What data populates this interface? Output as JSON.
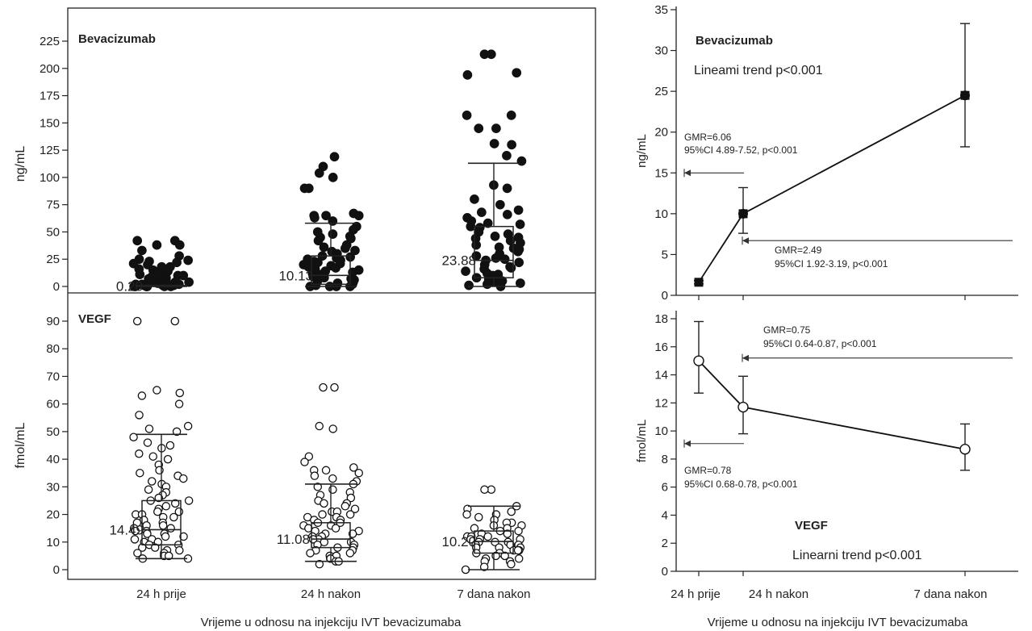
{
  "chart_data": [
    {
      "id": "left_top",
      "type": "scatter",
      "panel_title": "Bevacizumab",
      "ylabel": "ng/mL",
      "ylim": [
        0,
        235
      ],
      "yticks": [
        0,
        25,
        50,
        75,
        100,
        125,
        150,
        175,
        200,
        225
      ],
      "categories": [
        "24 h prije",
        "24 h nakon",
        "7 dana nakon"
      ],
      "medians": [
        "0.28",
        "10.13",
        "23.88"
      ],
      "median_values": [
        0.28,
        10.13,
        23.88
      ],
      "box": [
        {
          "q1": 0,
          "median": 0.28,
          "q3": 1,
          "whisker_low": 0,
          "whisker_high": 1
        },
        {
          "q1": 2,
          "median": 10.13,
          "q3": 28,
          "whisker_low": 0,
          "whisker_high": 58
        },
        {
          "q1": 8,
          "median": 23.88,
          "q3": 55,
          "whisker_low": 0,
          "whisker_high": 113
        }
      ],
      "points": [
        [
          42,
          42,
          38,
          38,
          33,
          28,
          25,
          24,
          23,
          22,
          21,
          20,
          18,
          18,
          16,
          15,
          14,
          13,
          12,
          11,
          10,
          10,
          9,
          8,
          8,
          7,
          6,
          6,
          5,
          5,
          4,
          4,
          3,
          3,
          3,
          2,
          2,
          2,
          2,
          1,
          1,
          1,
          1,
          1,
          0,
          0,
          0,
          0,
          0,
          0,
          0
        ],
        [
          119,
          110,
          104,
          100,
          90,
          90,
          67,
          65,
          65,
          65,
          63,
          60,
          55,
          52,
          50,
          48,
          46,
          45,
          44,
          42,
          38,
          36,
          35,
          33,
          32,
          30,
          28,
          27,
          26,
          25,
          24,
          23,
          22,
          21,
          20,
          19,
          18,
          17,
          16,
          15,
          14,
          13,
          12,
          11,
          10,
          9,
          8,
          7,
          6,
          5,
          4,
          3,
          2,
          1,
          0,
          0,
          0,
          0
        ],
        [
          213,
          213,
          196,
          194,
          157,
          157,
          145,
          145,
          131,
          130,
          120,
          115,
          93,
          90,
          80,
          75,
          70,
          68,
          66,
          63,
          60,
          58,
          57,
          55,
          54,
          50,
          48,
          46,
          45,
          44,
          42,
          40,
          38,
          36,
          35,
          34,
          32,
          30,
          28,
          26,
          25,
          24,
          22,
          20,
          18,
          17,
          16,
          14,
          12,
          11,
          10,
          8,
          6,
          5,
          4,
          3,
          2,
          1,
          0
        ]
      ]
    },
    {
      "id": "left_bottom",
      "type": "scatter",
      "panel_title": "VEGF",
      "ylabel": "fmol/mL",
      "xlabel": "Vrijeme u odnosu na injekciju IVT bevacizumaba",
      "ylim": [
        0,
        97
      ],
      "yticks": [
        0,
        10,
        20,
        30,
        40,
        50,
        60,
        70,
        80,
        90
      ],
      "categories": [
        "24 h prije",
        "24 h nakon",
        "7 dana nakon"
      ],
      "medians": [
        "14.49",
        "11.08",
        "10.20"
      ],
      "median_values": [
        14.49,
        11.08,
        10.2
      ],
      "box": [
        {
          "q1": 9,
          "median": 14.49,
          "q3": 25,
          "whisker_low": 4,
          "whisker_high": 49
        },
        {
          "q1": 8,
          "median": 11.08,
          "q3": 17,
          "whisker_low": 3,
          "whisker_high": 31
        },
        {
          "q1": 6,
          "median": 10.2,
          "q3": 14,
          "whisker_low": 0,
          "whisker_high": 23
        }
      ],
      "points": [
        [
          90,
          90,
          65,
          64,
          63,
          60,
          56,
          52,
          51,
          50,
          48,
          46,
          45,
          44,
          42,
          41,
          40,
          38,
          36,
          35,
          34,
          33,
          32,
          31,
          30,
          29,
          28,
          27,
          26,
          25,
          25,
          24,
          23,
          22,
          21,
          21,
          20,
          20,
          19,
          19,
          18,
          17,
          17,
          16,
          16,
          15,
          15,
          14,
          14,
          13,
          13,
          12,
          12,
          11,
          11,
          10,
          10,
          9,
          9,
          8,
          8,
          7,
          7,
          6,
          6,
          5,
          5,
          4,
          4
        ],
        [
          66,
          66,
          52,
          51,
          41,
          39,
          37,
          36,
          36,
          35,
          34,
          33,
          32,
          31,
          30,
          29,
          28,
          27,
          26,
          25,
          24,
          24,
          23,
          22,
          21,
          21,
          20,
          20,
          19,
          19,
          18,
          18,
          17,
          17,
          16,
          16,
          15,
          15,
          14,
          14,
          13,
          13,
          12,
          12,
          11,
          11,
          10,
          10,
          9,
          9,
          8,
          8,
          7,
          7,
          6,
          6,
          5,
          5,
          4,
          4,
          3,
          3,
          2
        ],
        [
          29,
          29,
          23,
          22,
          21,
          20,
          20,
          19,
          18,
          17,
          17,
          16,
          16,
          15,
          15,
          14,
          14,
          13,
          13,
          12,
          12,
          12,
          11,
          11,
          11,
          10,
          10,
          10,
          9,
          9,
          9,
          8,
          8,
          8,
          7,
          7,
          7,
          6,
          6,
          5,
          5,
          4,
          4,
          3,
          3,
          2,
          1,
          0
        ]
      ]
    },
    {
      "id": "right_top",
      "type": "line",
      "panel_title": "Bevacizumab",
      "trend": "Lineami trend p<0.001",
      "ylabel": "ng/mL",
      "ylim": [
        0,
        35
      ],
      "yticks": [
        0,
        5,
        10,
        15,
        20,
        25,
        30,
        35
      ],
      "x": [
        1,
        2,
        7
      ],
      "y": [
        1.6,
        10.0,
        24.5
      ],
      "err_low": [
        1.4,
        7.6,
        18.2
      ],
      "err_high": [
        1.8,
        13.2,
        33.3
      ],
      "annotations": [
        {
          "line1": "GMR=6.06",
          "line2": "95%CI 4.89-7.52, p<0.001",
          "arrow_y": 15
        },
        {
          "line1": "GMR=2.49",
          "line2": "95%CI 1.92-3.19, p<0.001",
          "arrow_y": 6.7
        }
      ]
    },
    {
      "id": "right_bottom",
      "type": "line",
      "panel_title": "VEGF",
      "trend": "Linearni trend p<0.001",
      "ylabel": "fmol/mL",
      "xlabel": "Vrijeme u odnosu na injekciju IVT bevacizumaba",
      "ylim": [
        0,
        19
      ],
      "yticks": [
        0,
        2,
        4,
        6,
        8,
        10,
        12,
        14,
        16,
        18
      ],
      "xticks": [
        1,
        2,
        7
      ],
      "categories": [
        "24 h prije",
        "24 h nakon",
        "7 dana nakon"
      ],
      "x": [
        1,
        2,
        7
      ],
      "y": [
        15.0,
        11.7,
        8.7
      ],
      "err_low": [
        12.7,
        9.8,
        7.2
      ],
      "err_high": [
        17.8,
        13.9,
        10.5
      ],
      "annotations": [
        {
          "line1": "GMR=0.75",
          "line2": "95%CI 0.64-0.87, p<0.001",
          "arrow_y": 15.2
        },
        {
          "line1": "GMR=0.78",
          "line2": "95%CI 0.68-0.78, p<0.001",
          "arrow_y": 9.1
        }
      ]
    }
  ]
}
